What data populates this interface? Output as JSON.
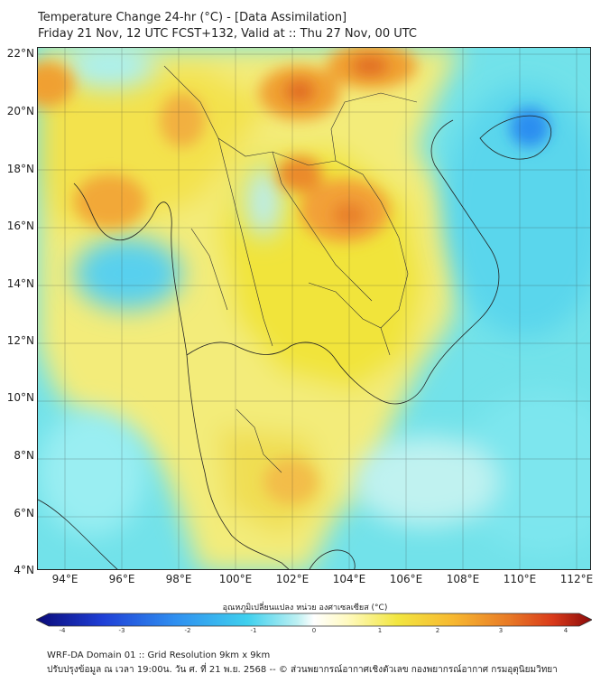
{
  "title": "Temperature Change 24-hr (°C) - [Data Assimilation]",
  "subtitle": "Friday 21 Nov, 12 UTC FCST+132, Valid at :: Thu 27 Nov, 00 UTC",
  "map": {
    "lat_labels": [
      "22°N",
      "20°N",
      "18°N",
      "16°N",
      "14°N",
      "12°N",
      "10°N",
      "8°N",
      "6°N",
      "4°N"
    ],
    "lon_labels": [
      "94°E",
      "96°E",
      "98°E",
      "100°E",
      "102°E",
      "104°E",
      "106°E",
      "108°E",
      "110°E",
      "112°E"
    ],
    "lat_range": [
      4,
      22
    ],
    "lon_range": [
      93,
      112.5
    ]
  },
  "colorbar": {
    "label": "อุณหภูมิเปลี่ยนแปลง หน่วย องศาเซลเซียส (°C)",
    "ticks": [
      "-4",
      "-3",
      "-2",
      "-1",
      "0",
      "1",
      "2",
      "3",
      "4"
    ],
    "range": [
      -4,
      4
    ],
    "colors": [
      "#0a0a78",
      "#1f3fd6",
      "#2f8ff0",
      "#3fd0ee",
      "#bdf0f2",
      "#ffffff",
      "#fffac0",
      "#f2e640",
      "#f7b830",
      "#e87a26",
      "#d93a1a",
      "#8a0a0a"
    ]
  },
  "footer": {
    "line1": "WRF-DA Domain 01 :: Grid Resolution 9km x 9km",
    "line2": "ปรับปรุงข้อมูล ณ เวลา 19:00น. วัน ศ. ที่ 21 พ.ย. 2568 -- © ส่วนพยากรณ์อากาศเชิงตัวเลข กองพยากรณ์อากาศ กรมอุตุนิยมวิทยา"
  }
}
